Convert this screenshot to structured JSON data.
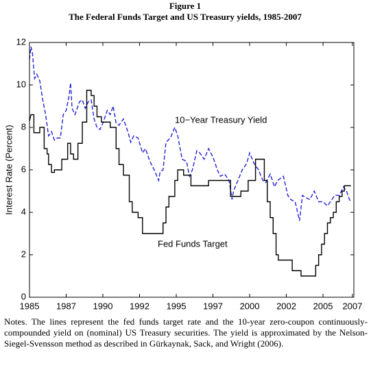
{
  "chart_data": {
    "type": "line",
    "title": "Figure 1",
    "subtitle": "The Federal Funds Target and US Treasury yields, 1985-2007",
    "y_label": "Interest Rate (Percent)",
    "annotations": [
      "10−Year Treasury Yield",
      "Fed Funds Target"
    ],
    "notes": "Notes. The lines represent the fed funds target rate and the 10-year zero-coupon continuously-compounded yield on (nominal) US Treasury securities. The yield is approximated by the Nelson-Siegel-Svensson method as described in Gürkaynak, Sack, and Wright (2006).",
    "xlim": [
      1985,
      2007.1
    ],
    "xticks": [
      1985,
      {
        "value": 1987.5,
        "label": "1987"
      },
      1990,
      {
        "value": 1992.5,
        "label": "1992"
      },
      1995,
      {
        "value": 1997.5,
        "label": "1997"
      },
      2000,
      {
        "value": 2002.5,
        "label": "2002"
      },
      2005,
      2007
    ],
    "ylim": [
      0,
      12
    ],
    "yticks": [
      0,
      2,
      4,
      6,
      8,
      10,
      12
    ],
    "series": [
      {
        "name": "10−Year Treasury Yield",
        "color": "#1f1fd8",
        "dash": true,
        "x": [
          1985.0,
          1985.1,
          1985.2,
          1985.35,
          1985.5,
          1985.7,
          1985.9,
          1986.1,
          1986.3,
          1986.5,
          1986.7,
          1986.9,
          1987.1,
          1987.3,
          1987.5,
          1987.7,
          1987.8,
          1987.9,
          1988.1,
          1988.4,
          1988.6,
          1988.8,
          1989.0,
          1989.2,
          1989.4,
          1989.6,
          1989.8,
          1990.0,
          1990.3,
          1990.5,
          1990.7,
          1990.9,
          1991.1,
          1991.4,
          1991.7,
          1991.9,
          1992.1,
          1992.4,
          1992.7,
          1992.9,
          1993.2,
          1993.5,
          1993.8,
          1993.9,
          1994.1,
          1994.3,
          1994.6,
          1994.9,
          1995.1,
          1995.4,
          1995.7,
          1995.9,
          1996.1,
          1996.4,
          1996.6,
          1996.9,
          1997.2,
          1997.5,
          1997.8,
          1998.0,
          1998.3,
          1998.6,
          1998.8,
          1998.9,
          1999.2,
          1999.5,
          1999.8,
          2000.0,
          2000.3,
          2000.6,
          2000.9,
          2001.1,
          2001.4,
          2001.7,
          2001.9,
          2002.1,
          2002.3,
          2002.6,
          2002.8,
          2003.1,
          2003.4,
          2003.6,
          2003.8,
          2004.1,
          2004.4,
          2004.7,
          2005.0,
          2005.3,
          2005.5,
          2005.8,
          2006.1,
          2006.4,
          2006.6,
          2006.8,
          2006.9
        ],
        "values": [
          11.2,
          11.8,
          11.5,
          10.3,
          10.5,
          10.2,
          9.3,
          8.6,
          7.6,
          7.8,
          7.4,
          7.5,
          7.5,
          8.6,
          8.8,
          9.5,
          10.1,
          8.9,
          8.6,
          9.2,
          9.3,
          8.9,
          9.2,
          9.3,
          8.4,
          8.0,
          7.9,
          8.2,
          8.8,
          8.6,
          9.0,
          8.2,
          8.1,
          8.4,
          7.8,
          7.3,
          7.6,
          7.5,
          6.8,
          7.0,
          6.4,
          6.0,
          5.5,
          5.9,
          6.0,
          7.3,
          7.5,
          8.0,
          7.6,
          6.5,
          6.4,
          5.7,
          6.0,
          6.9,
          6.8,
          6.5,
          7.0,
          6.6,
          6.0,
          5.7,
          5.8,
          5.5,
          4.6,
          5.0,
          5.5,
          6.0,
          6.3,
          6.8,
          6.3,
          6.0,
          5.5,
          5.4,
          5.8,
          5.2,
          5.5,
          5.6,
          5.7,
          4.8,
          4.6,
          4.5,
          3.6,
          4.8,
          4.7,
          4.6,
          5.0,
          4.5,
          4.5,
          4.3,
          4.5,
          4.8,
          4.8,
          5.2,
          5.0,
          4.6,
          4.5
        ]
      },
      {
        "name": "Fed Funds Target",
        "color": "#000000",
        "dash": false,
        "x": [
          1985.0,
          1985.1,
          1985.3,
          1985.3,
          1985.7,
          1985.7,
          1986.0,
          1986.0,
          1986.2,
          1986.2,
          1986.3,
          1986.3,
          1986.5,
          1986.5,
          1986.7,
          1986.7,
          1987.2,
          1987.2,
          1987.6,
          1987.6,
          1987.8,
          1987.8,
          1988.0,
          1988.0,
          1988.3,
          1988.3,
          1988.6,
          1988.6,
          1988.9,
          1988.9,
          1989.2,
          1989.2,
          1989.4,
          1989.4,
          1989.6,
          1989.6,
          1989.9,
          1989.9,
          1990.5,
          1990.5,
          1990.9,
          1990.9,
          1991.1,
          1991.1,
          1991.4,
          1991.4,
          1991.8,
          1991.8,
          1992.0,
          1992.0,
          1992.4,
          1992.4,
          1992.7,
          1992.7,
          1994.1,
          1994.1,
          1994.3,
          1994.3,
          1994.5,
          1994.5,
          1994.9,
          1994.9,
          1995.1,
          1995.1,
          1995.5,
          1995.5,
          1996.0,
          1996.0,
          1997.2,
          1997.2,
          1998.7,
          1998.7,
          1999.4,
          1999.4,
          1999.9,
          1999.9,
          2000.4,
          2000.4,
          2001.0,
          2001.0,
          2001.2,
          2001.2,
          2001.4,
          2001.4,
          2001.6,
          2001.6,
          2001.8,
          2001.8,
          2001.95,
          2001.95,
          2002.9,
          2002.9,
          2003.5,
          2003.5,
          2004.5,
          2004.5,
          2004.7,
          2004.7,
          2004.9,
          2004.9,
          2005.1,
          2005.1,
          2005.3,
          2005.3,
          2005.5,
          2005.5,
          2005.7,
          2005.7,
          2005.9,
          2005.9,
          2006.1,
          2006.1,
          2006.3,
          2006.3,
          2006.45,
          2006.45,
          2006.9
        ],
        "values": [
          8.3,
          8.6,
          8.6,
          7.75,
          7.75,
          8.0,
          8.0,
          7.0,
          7.0,
          6.75,
          6.75,
          6.25,
          6.25,
          5.88,
          5.88,
          6.0,
          6.0,
          6.5,
          6.5,
          7.25,
          7.25,
          6.75,
          6.75,
          6.5,
          6.5,
          7.25,
          7.25,
          8.25,
          8.25,
          9.75,
          9.75,
          9.5,
          9.5,
          9.0,
          9.0,
          8.5,
          8.5,
          8.25,
          8.25,
          8.0,
          8.0,
          7.0,
          7.0,
          6.25,
          6.25,
          5.75,
          5.75,
          4.5,
          4.5,
          4.0,
          4.0,
          3.75,
          3.75,
          3.0,
          3.0,
          3.5,
          3.5,
          4.25,
          4.25,
          4.75,
          4.75,
          5.5,
          5.5,
          6.0,
          6.0,
          5.75,
          5.75,
          5.25,
          5.25,
          5.5,
          5.5,
          4.75,
          4.75,
          5.0,
          5.0,
          5.5,
          5.5,
          6.5,
          6.5,
          5.5,
          5.5,
          4.5,
          4.5,
          3.75,
          3.75,
          3.0,
          3.0,
          2.0,
          2.0,
          1.75,
          1.75,
          1.25,
          1.25,
          1.0,
          1.0,
          1.5,
          1.5,
          2.0,
          2.0,
          2.5,
          2.5,
          3.0,
          3.0,
          3.5,
          3.5,
          3.75,
          3.75,
          4.0,
          4.0,
          4.5,
          4.5,
          4.75,
          4.75,
          5.0,
          5.0,
          5.25,
          5.25
        ]
      }
    ]
  }
}
